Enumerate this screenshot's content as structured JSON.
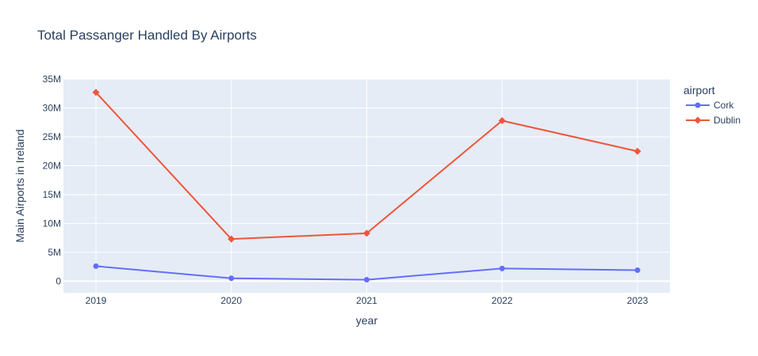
{
  "chart_data": {
    "type": "line",
    "title": "Total Passanger Handled By Airports",
    "xlabel": "year",
    "ylabel": "Main Airports in Ireland",
    "x": [
      2019,
      2020,
      2021,
      2022,
      2023
    ],
    "x_tick_labels": [
      "2019",
      "2020",
      "2021",
      "2022",
      "2023"
    ],
    "ylim": [
      -2000000,
      35000000
    ],
    "y_ticks": [
      0,
      5000000,
      10000000,
      15000000,
      20000000,
      25000000,
      30000000,
      35000000
    ],
    "y_tick_labels": [
      "0",
      "5M",
      "10M",
      "15M",
      "20M",
      "25M",
      "30M",
      "35M"
    ],
    "grid": true,
    "legend_title": "airport",
    "legend_position": "right",
    "series": [
      {
        "name": "Cork",
        "color": "#636efa",
        "marker": "circle",
        "values": [
          2600000,
          500000,
          250000,
          2200000,
          1900000
        ]
      },
      {
        "name": "Dublin",
        "color": "#ef553b",
        "marker": "diamond",
        "values": [
          32700000,
          7300000,
          8300000,
          27800000,
          22500000
        ]
      }
    ]
  }
}
